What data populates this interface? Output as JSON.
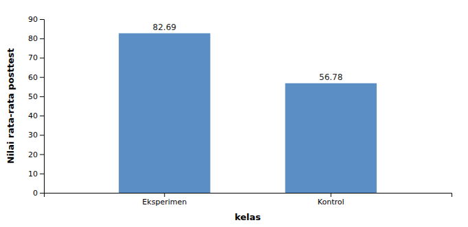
{
  "chart_data": {
    "type": "bar",
    "categories": [
      "Eksperimen",
      "Kontrol"
    ],
    "values": [
      82.69,
      56.78
    ],
    "color": "#5B8EC5",
    "xlabel": "kelas",
    "ylabel": "Nilai rata-rata posttest",
    "ylim": [
      0,
      90
    ],
    "yticks": [
      0,
      10,
      20,
      30,
      40,
      50,
      60,
      70,
      80,
      90
    ],
    "grid": false,
    "data_labels": true
  }
}
